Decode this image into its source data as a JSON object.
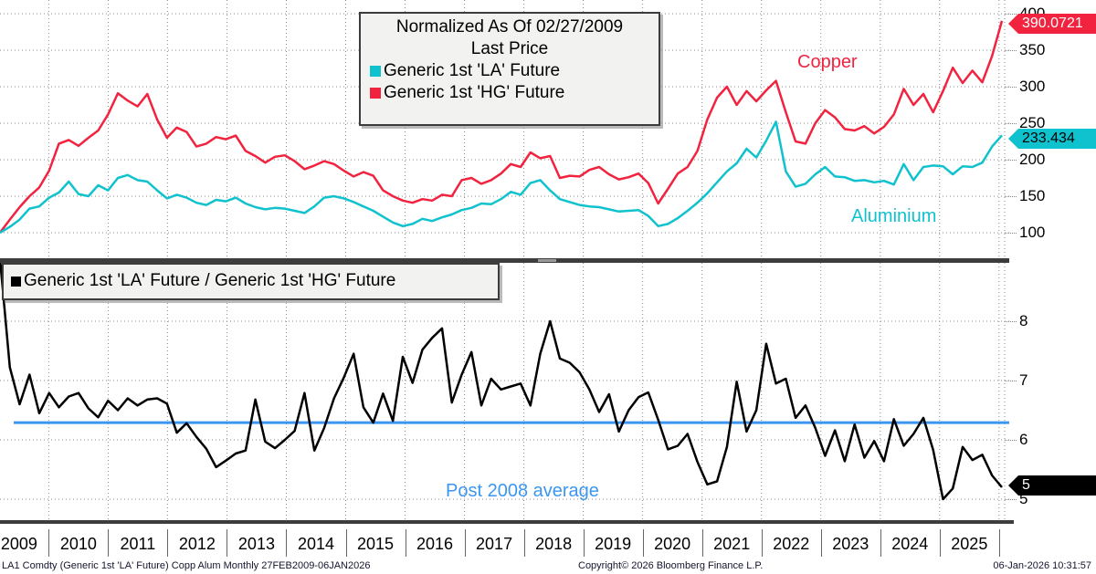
{
  "header_legend": {
    "title_line1": "Normalized As Of 02/27/2009",
    "title_line2": "Last Price",
    "series": [
      {
        "label": "Generic 1st 'LA' Future",
        "color": "#10c2cd"
      },
      {
        "label": "Generic 1st 'HG' Future",
        "color": "#f1233f"
      }
    ]
  },
  "ratio_legend": {
    "label": "Generic 1st 'LA' Future / Generic 1st 'HG' Future",
    "marker_color": "#000000"
  },
  "annotations": {
    "copper": "Copper",
    "aluminium": "Aluminium",
    "post2008": "Post 2008 average"
  },
  "tags": {
    "copper_last": "390.0721",
    "aluminium_last": "233.434",
    "ratio_last": "5"
  },
  "colors": {
    "copper": "#f1233f",
    "aluminium": "#10c2cd",
    "ratio": "#000000",
    "average_line": "#3c96f0",
    "grid": "#8a8a8a"
  },
  "x_axis": {
    "years": [
      "2009",
      "2010",
      "2011",
      "2012",
      "2013",
      "2014",
      "2015",
      "2016",
      "2017",
      "2018",
      "2019",
      "2020",
      "2021",
      "2022",
      "2023",
      "2024",
      "2025"
    ]
  },
  "footer": {
    "left": "LA1 Comdty (Generic 1st 'LA' Future) Copp Alum Monthly 27FEB2009-06JAN2026",
    "center": "Copyright© 2026 Bloomberg Finance L.P.",
    "right": "06-Jan-2026 10:31:57"
  },
  "chart_data": [
    {
      "type": "line",
      "panel": "top",
      "title": "Normalized As Of 02/27/2009 - Last Price",
      "x_start": "2009-02",
      "x_end": "2026-01",
      "x_interval": "2 months",
      "ylim": [
        65,
        419
      ],
      "yticks": [
        400,
        350,
        300,
        250,
        200,
        150,
        100
      ],
      "grid": true,
      "series": [
        {
          "name": "Generic 1st 'HG' Future (Copper)",
          "color": "#f1233f",
          "last_value": 390.0721,
          "values": [
            100,
            118,
            135,
            150,
            162,
            185,
            222,
            227,
            219,
            230,
            240,
            262,
            291,
            281,
            273,
            290,
            255,
            230,
            244,
            238,
            218,
            222,
            231,
            228,
            233,
            212,
            205,
            196,
            204,
            206,
            198,
            187,
            192,
            198,
            194,
            185,
            177,
            183,
            178,
            158,
            150,
            144,
            141,
            146,
            144,
            152,
            150,
            172,
            175,
            167,
            172,
            181,
            194,
            190,
            210,
            202,
            205,
            175,
            178,
            177,
            186,
            190,
            180,
            173,
            176,
            181,
            168,
            140,
            160,
            181,
            190,
            212,
            255,
            285,
            300,
            275,
            294,
            280,
            295,
            308,
            265,
            225,
            222,
            250,
            268,
            258,
            242,
            240,
            246,
            236,
            245,
            262,
            297,
            275,
            290,
            265,
            294,
            326,
            305,
            322,
            306,
            342,
            390.07
          ]
        },
        {
          "name": "Generic 1st 'LA' Future (Aluminium)",
          "color": "#10c2cd",
          "last_value": 233.434,
          "values": [
            100,
            108,
            118,
            133,
            136,
            148,
            155,
            170,
            153,
            150,
            165,
            158,
            175,
            179,
            172,
            170,
            158,
            147,
            152,
            148,
            141,
            138,
            145,
            143,
            148,
            140,
            135,
            132,
            134,
            133,
            130,
            127,
            136,
            148,
            150,
            147,
            142,
            136,
            130,
            122,
            114,
            109,
            112,
            119,
            116,
            121,
            125,
            131,
            134,
            140,
            139,
            146,
            156,
            152,
            168,
            172,
            158,
            146,
            142,
            138,
            136,
            135,
            132,
            129,
            130,
            131,
            123,
            109,
            112,
            120,
            130,
            141,
            154,
            169,
            184,
            195,
            215,
            203,
            226,
            252,
            184,
            163,
            167,
            180,
            190,
            177,
            176,
            171,
            172,
            169,
            171,
            166,
            194,
            172,
            190,
            192,
            191,
            180,
            191,
            190,
            196,
            218,
            233.43
          ]
        }
      ]
    },
    {
      "type": "line",
      "panel": "bottom",
      "title": "Generic 1st 'LA' Future / Generic 1st 'HG' Future",
      "x_start": "2009-02",
      "x_end": "2026-01",
      "x_interval": "2 months",
      "ylim": [
        4.57,
        8.98
      ],
      "yticks": [
        8,
        7,
        6,
        5
      ],
      "grid": true,
      "average_line": {
        "label": "Post 2008 average",
        "value": 6.29,
        "color": "#3c96f0"
      },
      "series": [
        {
          "name": "Generic 1st 'LA' Future / Generic 1st 'HG' Future",
          "color": "#000000",
          "last_value": 5.2,
          "values": [
            9.05,
            7.22,
            6.6,
            7.1,
            6.45,
            6.79,
            6.55,
            6.73,
            6.79,
            6.53,
            6.38,
            6.66,
            6.5,
            6.7,
            6.58,
            6.68,
            6.7,
            6.61,
            6.12,
            6.28,
            6.05,
            5.85,
            5.54,
            5.65,
            5.77,
            5.82,
            6.68,
            5.97,
            5.86,
            6.0,
            6.15,
            6.79,
            5.82,
            6.2,
            6.7,
            7.05,
            7.45,
            6.55,
            6.29,
            6.78,
            6.32,
            7.4,
            6.96,
            7.52,
            7.72,
            7.88,
            6.63,
            7.1,
            7.48,
            6.58,
            7.03,
            6.85,
            6.9,
            6.95,
            6.58,
            7.45,
            8.0,
            7.37,
            7.3,
            7.14,
            6.85,
            6.47,
            6.77,
            6.14,
            6.5,
            6.72,
            6.8,
            6.34,
            5.84,
            5.9,
            6.1,
            5.63,
            5.25,
            5.3,
            5.88,
            6.98,
            6.14,
            6.5,
            7.62,
            6.95,
            7.03,
            6.37,
            6.58,
            6.2,
            5.73,
            6.16,
            5.64,
            6.26,
            5.7,
            5.98,
            5.64,
            6.35,
            5.9,
            6.1,
            6.37,
            5.83,
            5.0,
            5.18,
            5.88,
            5.66,
            5.75,
            5.4,
            5.2
          ]
        }
      ]
    }
  ]
}
